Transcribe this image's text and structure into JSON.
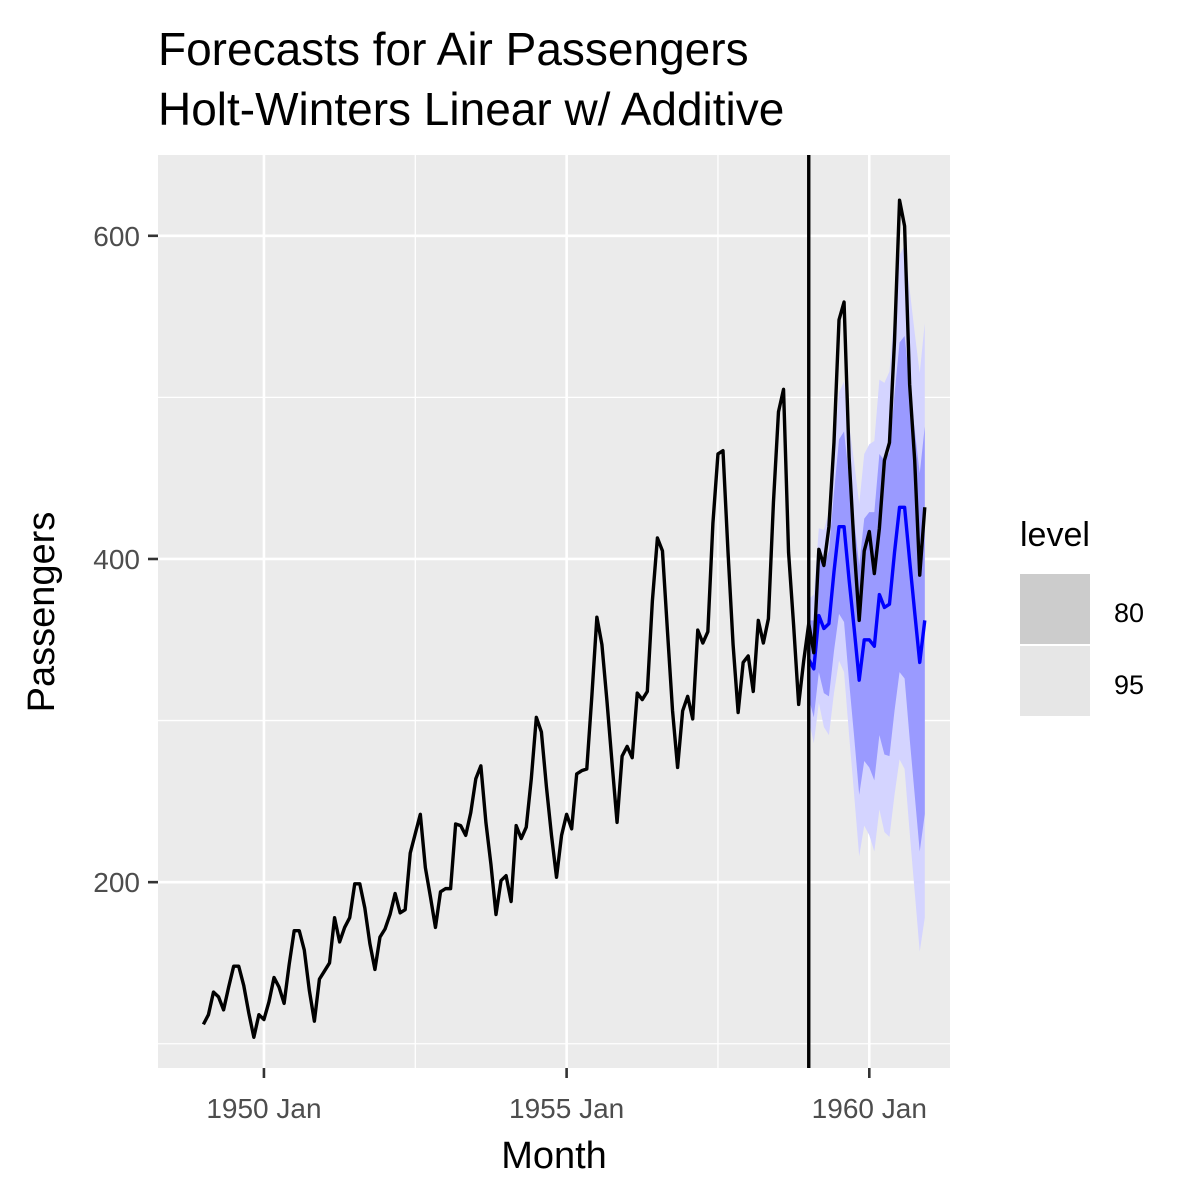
{
  "title_line1": "Forecasts for Air Passengers",
  "title_line2": "Holt-Winters Linear w/ Additive",
  "chart_data": {
    "type": "line",
    "title": "Forecasts for Air Passengers\nHolt-Winters Linear w/ Additive",
    "xlabel": "Month",
    "ylabel": "Passengers",
    "x_ticks": [
      "1950 Jan",
      "1955 Jan",
      "1960 Jan"
    ],
    "y_ticks": [
      200,
      400,
      600
    ],
    "xlim": [
      "1948-04",
      "1961-05"
    ],
    "ylim": [
      85,
      650
    ],
    "grid": true,
    "legend_title": "level",
    "legend_entries": [
      "80",
      "95"
    ],
    "forecast_origin": "1959-01",
    "series": [
      {
        "role": "actual",
        "color": "#000000",
        "start": "1949-01",
        "values": [
          112,
          118,
          132,
          129,
          121,
          135,
          148,
          148,
          136,
          119,
          104,
          118,
          115,
          126,
          141,
          135,
          125,
          149,
          170,
          170,
          158,
          133,
          114,
          140,
          145,
          150,
          178,
          163,
          172,
          178,
          199,
          199,
          184,
          162,
          146,
          166,
          171,
          180,
          193,
          181,
          183,
          218,
          230,
          242,
          209,
          191,
          172,
          194,
          196,
          196,
          236,
          235,
          229,
          243,
          264,
          272,
          237,
          211,
          180,
          201,
          204,
          188,
          235,
          227,
          234,
          264,
          302,
          293,
          259,
          229,
          203,
          229,
          242,
          233,
          267,
          269,
          270,
          315,
          364,
          347,
          312,
          274,
          237,
          278,
          284,
          277,
          317,
          313,
          318,
          374,
          413,
          405,
          355,
          306,
          271,
          306,
          315,
          301,
          356,
          348,
          355,
          422,
          465,
          467,
          404,
          347,
          305,
          336,
          340,
          318,
          362,
          348,
          363,
          435,
          491,
          505,
          404,
          359,
          310,
          337,
          360,
          342,
          406,
          396,
          420,
          472,
          548,
          559,
          463,
          407,
          362,
          405,
          417,
          391,
          419,
          461,
          472,
          535,
          622,
          606,
          508,
          461,
          390,
          432
        ]
      },
      {
        "role": "forecast",
        "color": "#0000ff",
        "start": "1959-01",
        "values": [
          338,
          332,
          365,
          357,
          360,
          392,
          420,
          420,
          387,
          357,
          325,
          350,
          350,
          346,
          378,
          370,
          372,
          404,
          432,
          432,
          399,
          367,
          336,
          362
        ],
        "lo80": [
          314,
          302,
          330,
          317,
          315,
          343,
          366,
          361,
          324,
          290,
          254,
          275,
          271,
          263,
          291,
          279,
          278,
          306,
          330,
          326,
          289,
          254,
          219,
          242
        ],
        "hi80": [
          362,
          362,
          400,
          397,
          405,
          441,
          474,
          479,
          450,
          424,
          396,
          425,
          429,
          429,
          465,
          461,
          466,
          502,
          534,
          538,
          509,
          480,
          453,
          482
        ],
        "lo95": [
          301,
          286,
          311,
          296,
          291,
          317,
          337,
          330,
          291,
          254,
          216,
          235,
          229,
          219,
          245,
          231,
          228,
          254,
          276,
          270,
          231,
          194,
          157,
          178
        ],
        "hi95": [
          375,
          378,
          419,
          418,
          429,
          467,
          503,
          510,
          483,
          460,
          434,
          465,
          471,
          473,
          511,
          509,
          516,
          554,
          588,
          594,
          567,
          540,
          515,
          546
        ]
      }
    ]
  },
  "colors": {
    "panel": "#ebebeb",
    "grid": "#ffffff",
    "band80": "#9a9aff",
    "band95": "#d4d4ff",
    "legend80": "#cccccc",
    "legend95": "#e6e6e6"
  }
}
